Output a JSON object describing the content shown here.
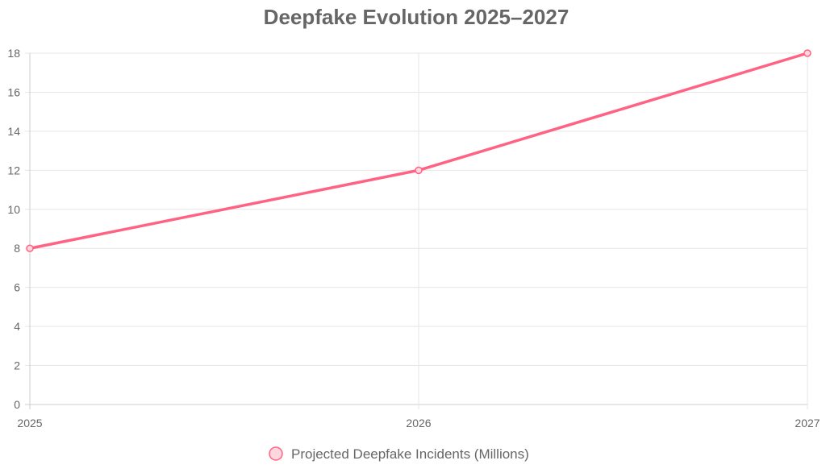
{
  "chart_data": {
    "type": "line",
    "title": "Deepfake Evolution 2025–2027",
    "x": [
      "2025",
      "2026",
      "2027"
    ],
    "series": [
      {
        "name": "Projected Deepfake Incidents (Millions)",
        "values": [
          8,
          12,
          18
        ],
        "color": "#ff6384",
        "point_fill": "#ffd6de"
      }
    ],
    "ylim": [
      0,
      18
    ],
    "yticks": [
      "0",
      "2",
      "4",
      "6",
      "8",
      "10",
      "12",
      "14",
      "16",
      "18"
    ],
    "grid": true,
    "legend": "bottom"
  }
}
